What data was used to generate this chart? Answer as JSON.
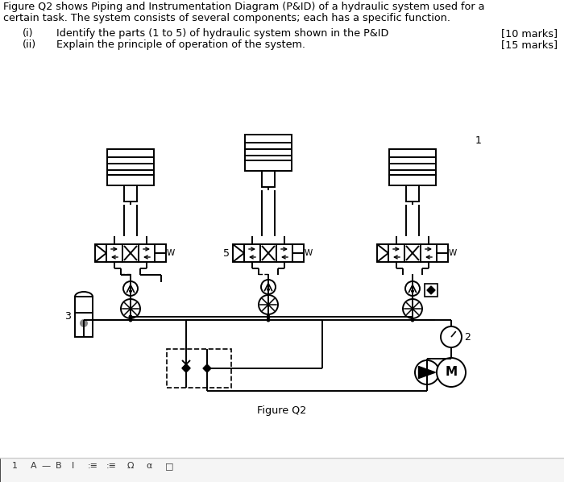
{
  "bg_color": "#ffffff",
  "line_color": "#000000",
  "text_color": "#000000",
  "fig_width": 7.0,
  "fig_height": 5.98,
  "header_line1": "Figure Q2 shows Piping and Instrumentation Diagram (P&ID) of a hydraulic system used for a",
  "header_line2": "certain task. The system consists of several components; each has a specific function.",
  "q1_num": "(i)",
  "q1_text": "Identify the parts (1 to 5) of hydraulic system shown in the P&ID",
  "q1_marks": "[10 marks]",
  "q2_num": "(ii)",
  "q2_text": "Explain the principle of operation of the system.",
  "q2_marks": "[15 marks]",
  "fig_caption": "Figure Q2",
  "toolbar_bg": "#f0f0f0",
  "toolbar_border": "#cccccc"
}
